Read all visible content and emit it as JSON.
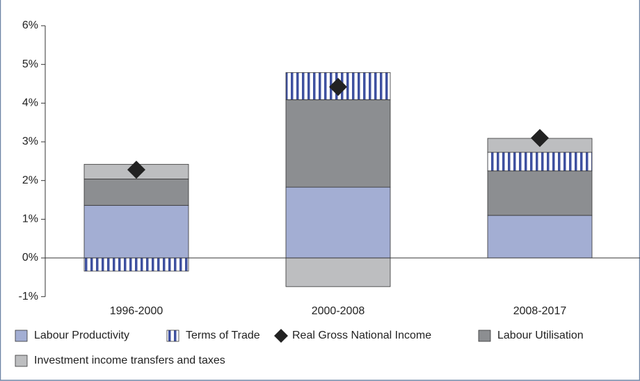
{
  "chart_data": {
    "type": "bar",
    "stacked": true,
    "categories": [
      "1996-2000",
      "2000-2008",
      "2008-2017"
    ],
    "ylim": [
      -1,
      6
    ],
    "yticks": [
      {
        "value": -1,
        "label": "-1%"
      },
      {
        "value": 0,
        "label": "0%"
      },
      {
        "value": 1,
        "label": "1%"
      },
      {
        "value": 2,
        "label": "2%"
      },
      {
        "value": 3,
        "label": "3%"
      },
      {
        "value": 4,
        "label": "4%"
      },
      {
        "value": 5,
        "label": "5%"
      },
      {
        "value": 6,
        "label": "6%"
      }
    ],
    "series": [
      {
        "name": "Labour Productivity",
        "color": "#a3aed3",
        "values": [
          1.36,
          1.83,
          1.1
        ]
      },
      {
        "name": "Labour Utilisation",
        "color": "#8c8e91",
        "values": [
          0.68,
          2.26,
          1.15
        ]
      },
      {
        "name": "Terms of Trade",
        "color": "#3f51a0",
        "pattern": "vertical-stripes",
        "values": [
          -0.34,
          0.7,
          0.48
        ]
      },
      {
        "name": "Investment income transfers and taxes",
        "color": "#bdbec0",
        "values": [
          0.38,
          -0.74,
          0.36
        ]
      },
      {
        "name": "Real Gross National Income",
        "color": "#222222",
        "type": "scatter",
        "marker": "diamond",
        "values": [
          2.28,
          4.42,
          3.1
        ]
      }
    ]
  }
}
